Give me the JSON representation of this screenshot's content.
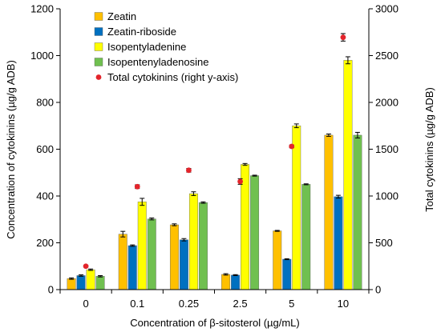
{
  "chart_data": {
    "type": "bar",
    "xlabel": "Concentration of β-sitosterol (µg/mL)",
    "ylabel": "Concentration of cytokinins (µg/g ADB)",
    "y2label": "Total cytokinins (µg/g ADB)",
    "categories": [
      "0",
      "0.1",
      "0.25",
      "2.5",
      "5",
      "10"
    ],
    "ylim": [
      0,
      1200
    ],
    "y2lim": [
      0,
      3000
    ],
    "yticks": [
      "0",
      "200",
      "400",
      "600",
      "800",
      "1000",
      "1200"
    ],
    "y2ticks": [
      "0",
      "500",
      "1000",
      "1500",
      "2000",
      "2500",
      "3000"
    ],
    "grid": false,
    "legend_position": "top-left",
    "series": [
      {
        "name": "Zeatin",
        "color": "#FFC000",
        "values": [
          47,
          237,
          277,
          65,
          251,
          660
        ],
        "errors": [
          3,
          12,
          4,
          3,
          2,
          5
        ]
      },
      {
        "name": "Zeatin-riboside",
        "color": "#0070C0",
        "values": [
          60,
          188,
          213,
          62,
          130,
          397
        ],
        "errors": [
          3,
          3,
          5,
          2,
          2,
          6
        ]
      },
      {
        "name": "Isopentyladenine",
        "color": "#FFFF00",
        "values": [
          85,
          375,
          410,
          535,
          700,
          980
        ],
        "errors": [
          3,
          15,
          8,
          4,
          8,
          15
        ]
      },
      {
        "name": "Isopentenyladenosine",
        "color": "#70C050",
        "values": [
          57,
          302,
          372,
          487,
          450,
          660
        ],
        "errors": [
          3,
          4,
          3,
          2,
          2,
          12
        ]
      }
    ],
    "total_series": {
      "name": "Total cytokinins (right y-axis)",
      "color": "#E3242B",
      "axis": "right",
      "values": [
        250,
        1100,
        1275,
        1155,
        1530,
        2695
      ],
      "errors": [
        10,
        20,
        20,
        30,
        15,
        40
      ]
    }
  }
}
